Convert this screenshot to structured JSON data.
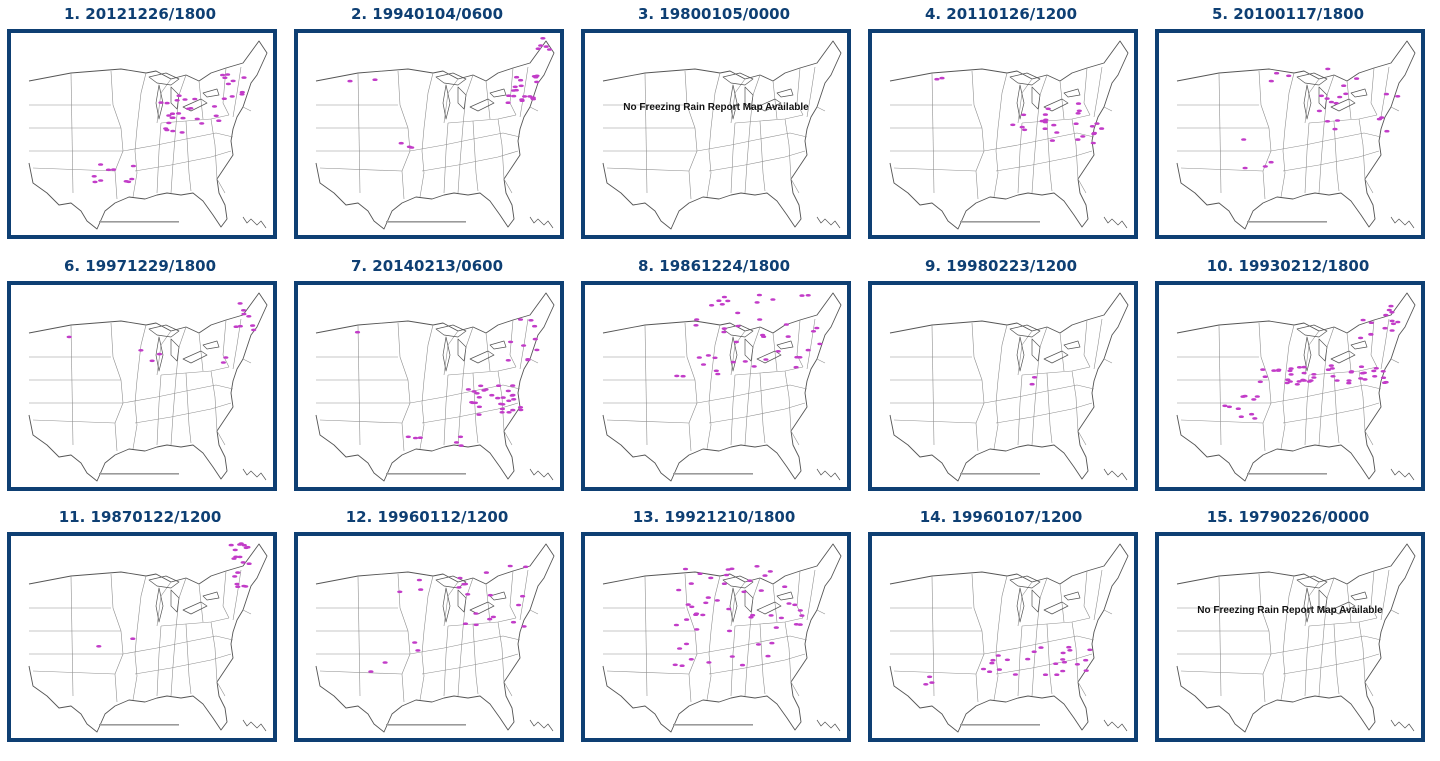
{
  "title_color": "#0e3f73",
  "frame_color": "#0e3f73",
  "report_color": "#c23cc8",
  "map_line_color": "#8f8f8f",
  "panels": [
    {
      "label": "1. 20121226/1800",
      "map_available": true,
      "reports": "central-east"
    },
    {
      "label": "2. 19940104/0600",
      "map_available": true,
      "reports": "northeast-coast"
    },
    {
      "label": "3. 19800105/0000",
      "map_available": false,
      "no_map_text": "No Freezing Rain Report Map Available"
    },
    {
      "label": "4. 20110126/1200",
      "map_available": true,
      "reports": "mid-atlantic"
    },
    {
      "label": "5. 20100117/1800",
      "map_available": true,
      "reports": "northeast-scattered"
    },
    {
      "label": "6. 19971229/1800",
      "map_available": true,
      "reports": "northeast-sparse"
    },
    {
      "label": "7. 20140213/0600",
      "map_available": true,
      "reports": "southeast-coast"
    },
    {
      "label": "8. 19861224/1800",
      "map_available": true,
      "reports": "great-lakes"
    },
    {
      "label": "9. 19980223/1200",
      "map_available": true,
      "reports": "minimal"
    },
    {
      "label": "10. 19930212/1800",
      "map_available": true,
      "reports": "ohio-valley-wide"
    },
    {
      "label": "11. 19870122/1200",
      "map_available": true,
      "reports": "new-england"
    },
    {
      "label": "12. 19960112/1200",
      "map_available": true,
      "reports": "northeast-scattered"
    },
    {
      "label": "13. 19921210/1800",
      "map_available": true,
      "reports": "midwest-wide"
    },
    {
      "label": "14. 19960107/1200",
      "map_available": true,
      "reports": "south-carolina-band"
    },
    {
      "label": "15. 19790226/0000",
      "map_available": false,
      "no_map_text": "No Freezing Rain Report Map Available"
    }
  ]
}
